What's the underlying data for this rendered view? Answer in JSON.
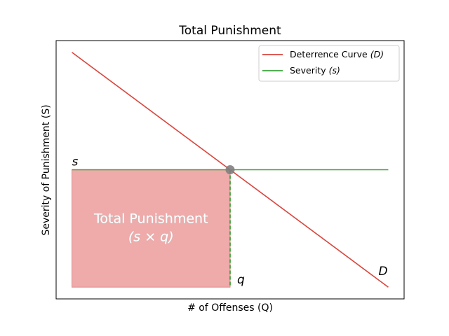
{
  "chart_data": {
    "type": "line",
    "title": "Total Punishment",
    "xlabel": "# of Offenses (Q)",
    "ylabel": "Severity of Punishment (S)",
    "xticks": "none",
    "yticks": "none",
    "xlim": [
      -0.05,
      1.05
    ],
    "ylim": [
      -0.05,
      1.05
    ],
    "grid": false,
    "legend_placement": "top-right",
    "series": [
      {
        "name": "Deterrence Curve",
        "name_symbol": "(D)",
        "color": "#d9453d",
        "x": [
          0,
          1
        ],
        "y": [
          1,
          0
        ]
      },
      {
        "name": "Severity",
        "name_symbol": "(s)",
        "color": "#3aa33a",
        "x": [
          0,
          1
        ],
        "y": [
          0.5,
          0.5
        ]
      }
    ],
    "equilibrium": {
      "x": 0.5,
      "y": 0.5,
      "color": "#808080"
    },
    "shaded_region": {
      "x": [
        0,
        0.5
      ],
      "y": [
        0,
        0.5
      ],
      "color": "#eea5a5",
      "label_line1": "Total Punishment",
      "label_line2": "(s × q)"
    },
    "annotations": {
      "s": "s",
      "q": "q",
      "D": "D"
    }
  }
}
